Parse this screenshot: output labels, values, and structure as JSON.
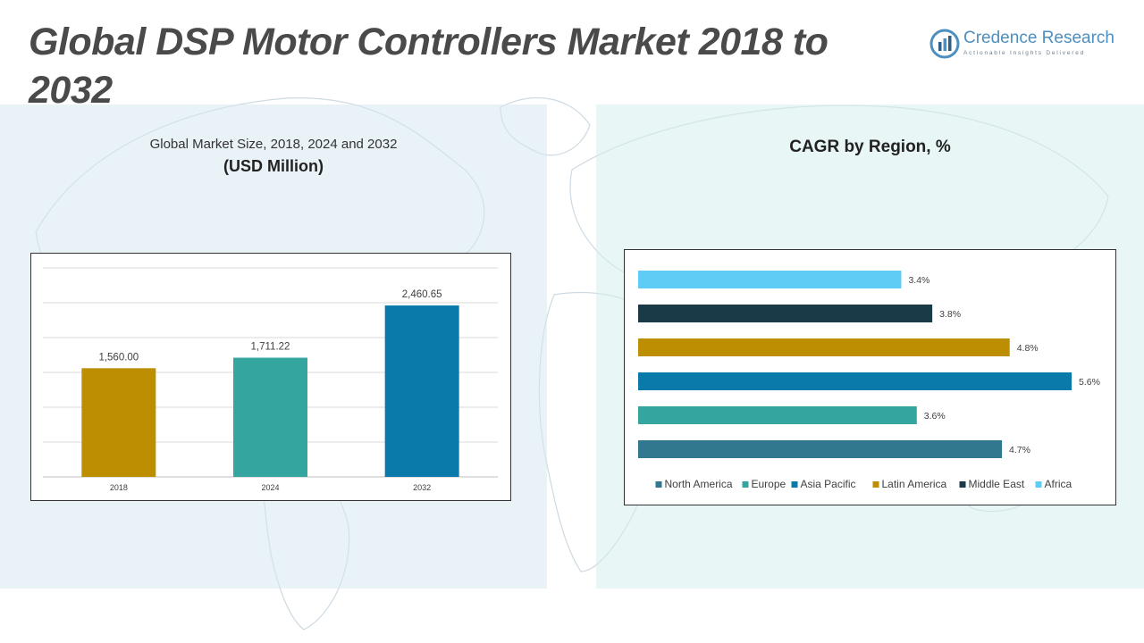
{
  "page": {
    "title": "Global DSP Motor Controllers Market 2018 to 2032"
  },
  "logo": {
    "name": "Credence Research",
    "tagline": "Actionable Insights Delivered"
  },
  "left_panel": {
    "subtitle": "Global Market Size, 2018, 2024 and 2032",
    "unit": "(USD Million)"
  },
  "right_panel": {
    "title": "CAGR by Region, %"
  },
  "colors": {
    "north_america": "#31788f",
    "europe": "#35a5a0",
    "asia_pacific": "#0a7aab",
    "latin_america": "#bd8e02",
    "middle_east": "#1b3a48",
    "africa": "#5dcdf5"
  },
  "chart_data": [
    {
      "type": "bar",
      "categories": [
        "2018",
        "2024",
        "2032"
      ],
      "values": [
        1560.0,
        1711.22,
        2460.65
      ],
      "value_labels": [
        "1,560.00",
        "1,711.22",
        "2,460.65"
      ],
      "bar_colors": [
        "#bd8e02",
        "#35a5a0",
        "#0a7aab"
      ],
      "ylim": [
        0,
        3000
      ],
      "grid": true,
      "xlabel": "",
      "ylabel": ""
    },
    {
      "type": "bar",
      "orientation": "horizontal",
      "series": [
        {
          "name": "North America",
          "value": 4.7,
          "label": "4.7%",
          "color": "#31788f"
        },
        {
          "name": "Europe",
          "value": 3.6,
          "label": "3.6%",
          "color": "#35a5a0"
        },
        {
          "name": "Asia Pacific",
          "value": 5.6,
          "label": "5.6%",
          "color": "#0a7aab"
        },
        {
          "name": "Latin America",
          "value": 4.8,
          "label": "4.8%",
          "color": "#bd8e02"
        },
        {
          "name": "Middle East",
          "value": 3.8,
          "label": "3.8%",
          "color": "#1b3a48"
        },
        {
          "name": "Africa",
          "value": 3.4,
          "label": "3.4%",
          "color": "#5dcdf5"
        }
      ],
      "xlim": [
        0,
        5.6
      ],
      "legend": "bottom",
      "grid": false
    }
  ]
}
